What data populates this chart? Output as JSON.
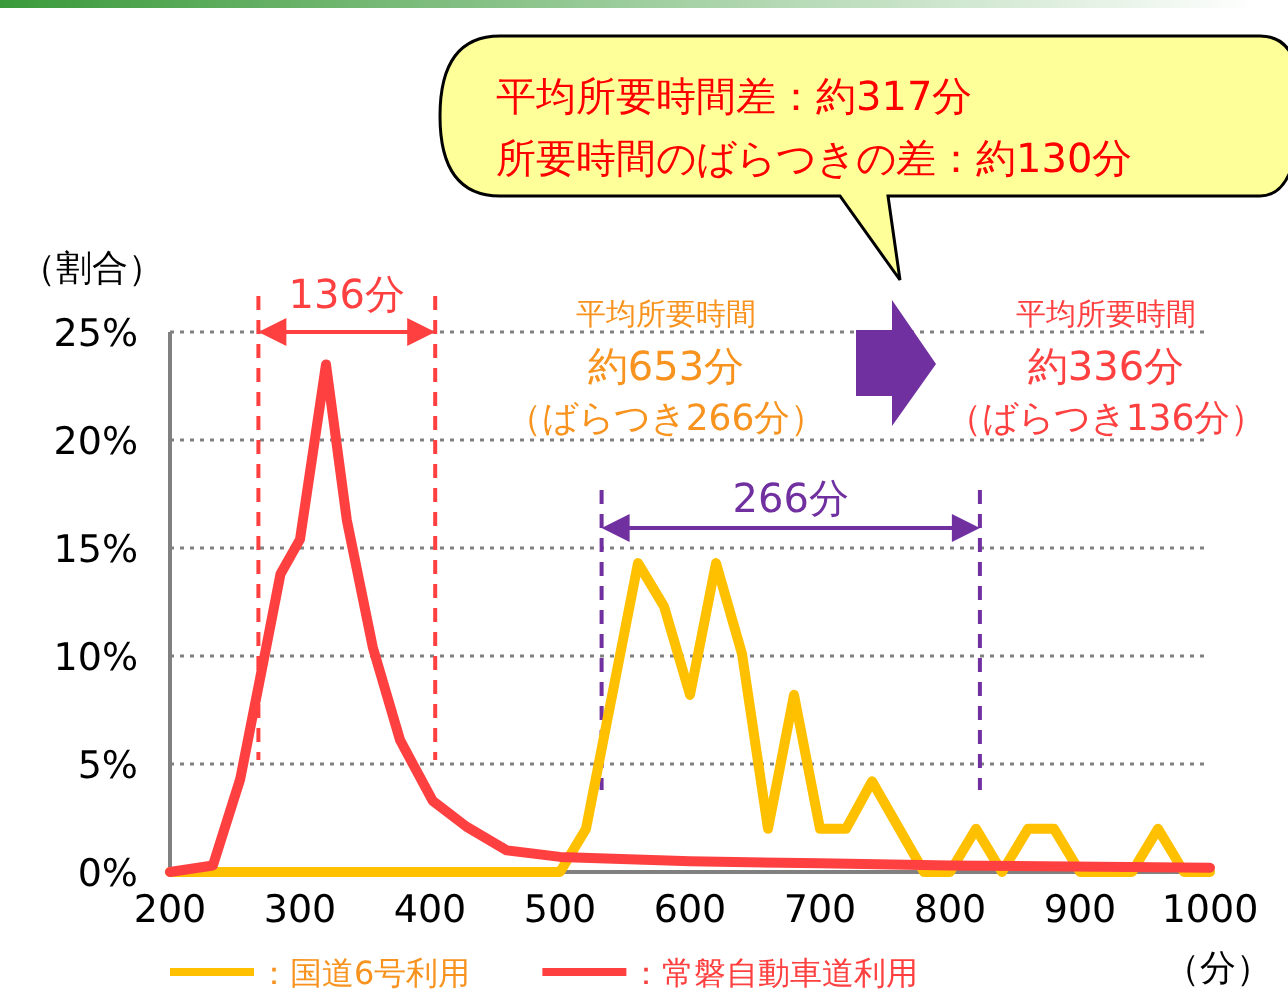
{
  "chart_data": {
    "type": "line",
    "xlabel": "（分）",
    "ylabel": "（割合）",
    "xlim": [
      200,
      1000
    ],
    "xticks": [
      200,
      300,
      400,
      500,
      600,
      700,
      800,
      900,
      1000
    ],
    "ylim": [
      0,
      25
    ],
    "yticks": [
      {
        "value": 0,
        "label": "0%"
      },
      {
        "value": 5,
        "label": "5%"
      },
      {
        "value": 10,
        "label": "10%"
      },
      {
        "value": 15,
        "label": "15%"
      },
      {
        "value": 20,
        "label": "20%"
      },
      {
        "value": 25,
        "label": "25%"
      }
    ],
    "grid": "y",
    "legend": "bottom",
    "marker": "none",
    "line_style": "solid",
    "series": [
      {
        "name": "：国道6号利用",
        "color": "#ffc000",
        "x": [
          200,
          480,
          500,
          520,
          560,
          580,
          600,
          620,
          640,
          660,
          680,
          700,
          720,
          740,
          780,
          800,
          820,
          840,
          860,
          880,
          900,
          940,
          960,
          980,
          1000
        ],
        "values": [
          0,
          0,
          0,
          2,
          14.3,
          12.3,
          8.2,
          14.3,
          10.1,
          2,
          8.2,
          2,
          2,
          4.2,
          0,
          0,
          2,
          0,
          2,
          2,
          0,
          0,
          2,
          0,
          0
        ]
      },
      {
        "name": "：常磐自動車道利用",
        "color": "#ff4040",
        "x": [
          200,
          233,
          254,
          274,
          285,
          300,
          320,
          336,
          356,
          377,
          402,
          428,
          459,
          500,
          600,
          700,
          800,
          1000
        ],
        "values": [
          0,
          0.3,
          4.3,
          10.4,
          13.8,
          15.4,
          23.5,
          16.3,
          10.4,
          6.1,
          3.3,
          2.1,
          1,
          0.7,
          0.5,
          0.4,
          0.3,
          0.2
        ]
      }
    ],
    "ref_lines": [
      {
        "axis": "x",
        "value": 268,
        "color": "#ff4040",
        "line_style": "dashed"
      },
      {
        "axis": "x",
        "value": 404,
        "color": "#ff4040",
        "line_style": "dashed"
      },
      {
        "axis": "x",
        "value": 532,
        "color": "#7030a0",
        "line_style": "dashed"
      },
      {
        "axis": "x",
        "value": 823,
        "color": "#7030a0",
        "line_style": "dashed"
      }
    ],
    "annotations": [
      "136分",
      "266分",
      "平均所要時間差：約317分",
      "所要時間のばらつきの差：約130分",
      "平均所要時間",
      "約653分",
      "（ばらつき266分）",
      "平均所要時間",
      "約336分",
      "（ばらつき136分）"
    ]
  }
}
